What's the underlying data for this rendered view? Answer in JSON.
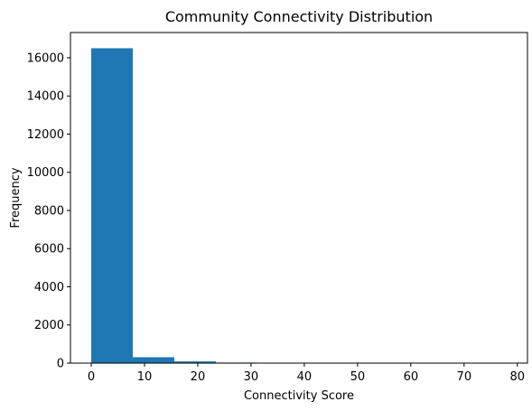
{
  "chart_data": {
    "type": "bar",
    "title": "Community Connectivity Distribution",
    "xlabel": "Connectivity Score",
    "ylabel": "Frequency",
    "bins": [
      {
        "x0": 0.0,
        "x1": 7.8,
        "count": 16500
      },
      {
        "x0": 7.8,
        "x1": 15.6,
        "count": 310
      },
      {
        "x0": 15.6,
        "x1": 23.4,
        "count": 90
      },
      {
        "x0": 23.4,
        "x1": 31.2,
        "count": 30
      },
      {
        "x0": 31.2,
        "x1": 39.0,
        "count": 10
      },
      {
        "x0": 39.0,
        "x1": 46.8,
        "count": 5
      },
      {
        "x0": 46.8,
        "x1": 54.6,
        "count": 3
      },
      {
        "x0": 54.6,
        "x1": 62.4,
        "count": 2
      },
      {
        "x0": 62.4,
        "x1": 70.2,
        "count": 1
      },
      {
        "x0": 70.2,
        "x1": 78.0,
        "count": 1
      }
    ],
    "xlim": [
      -3.9,
      81.9
    ],
    "ylim": [
      0,
      17325
    ],
    "xticks": [
      0,
      10,
      20,
      30,
      40,
      50,
      60,
      70,
      80
    ],
    "yticks": [
      0,
      2000,
      4000,
      6000,
      8000,
      10000,
      12000,
      14000,
      16000
    ],
    "bar_color": "#1f77b4",
    "grid": false,
    "legend": "none"
  }
}
